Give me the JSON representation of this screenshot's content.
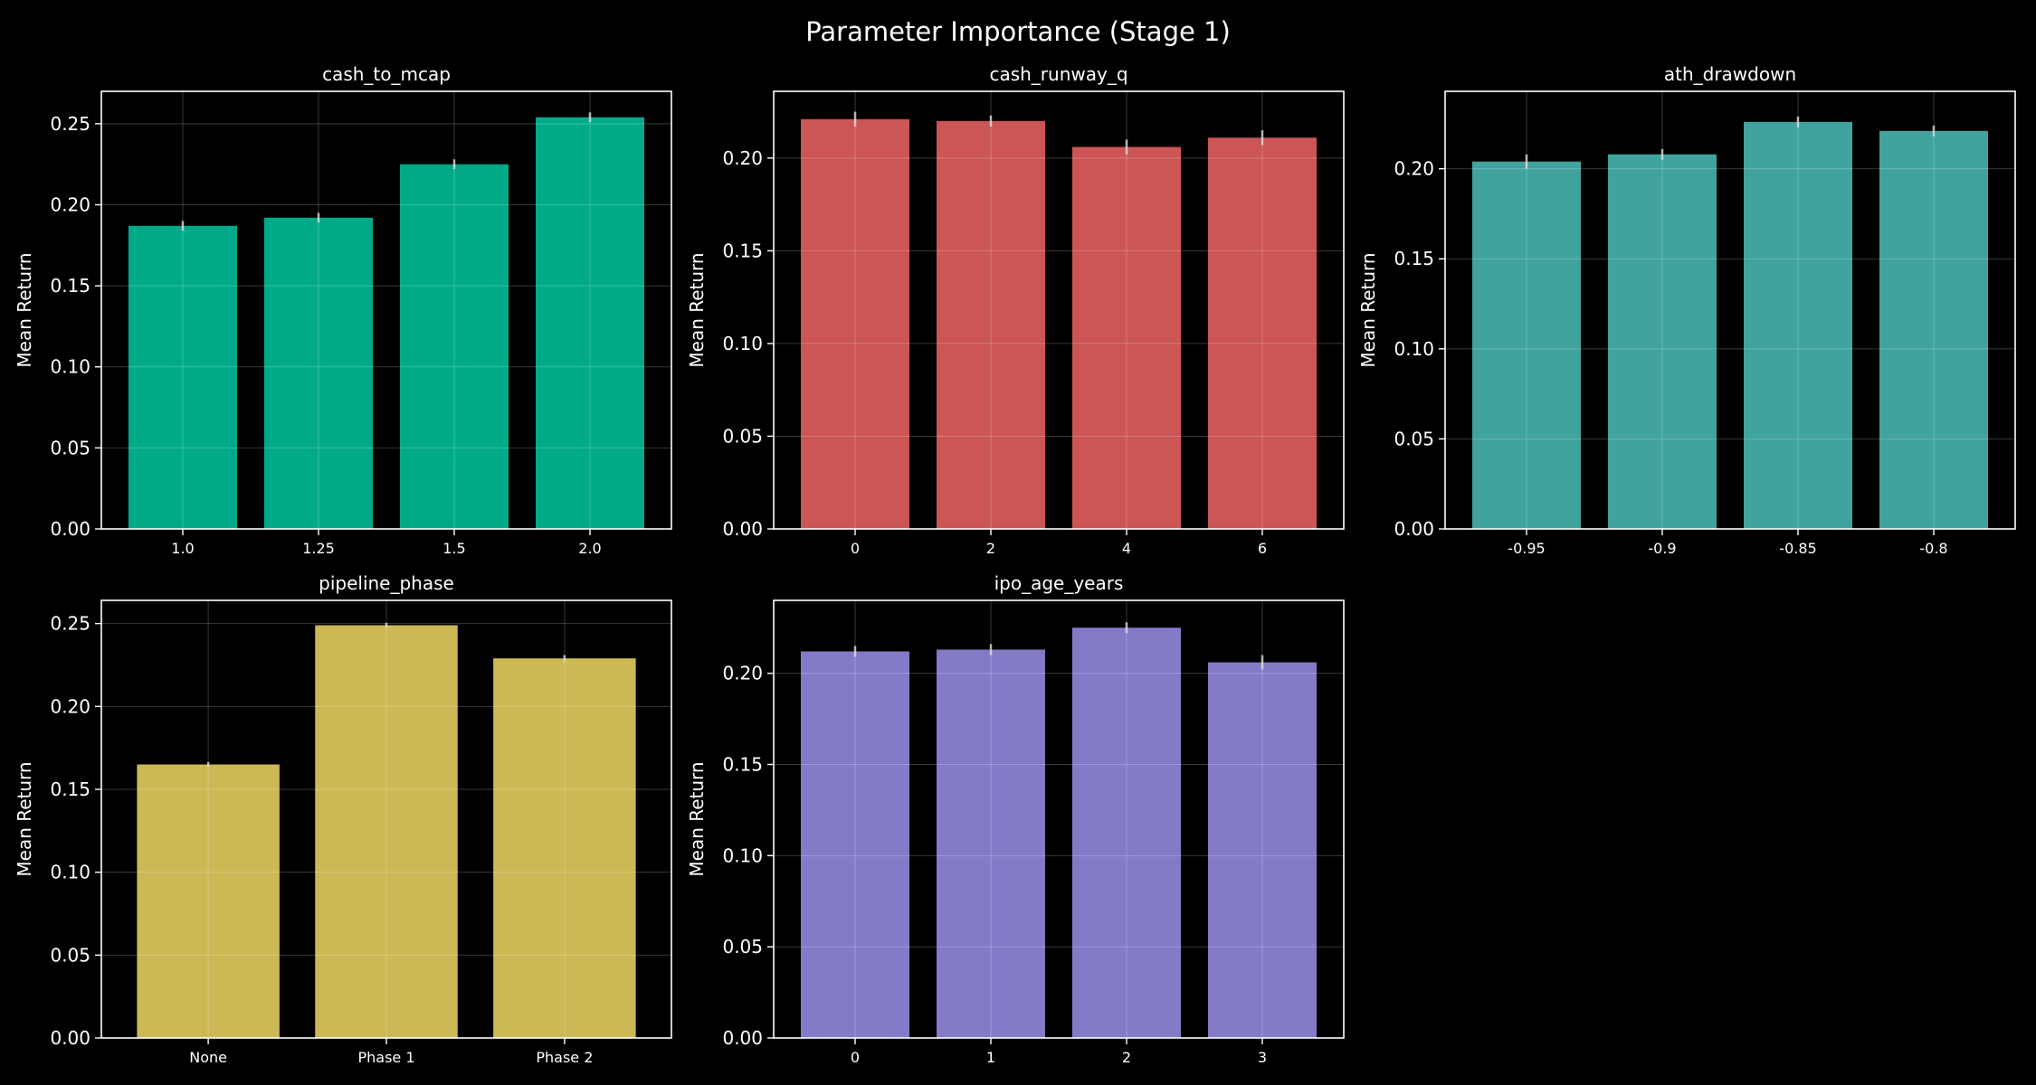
{
  "figure": {
    "title": "Parameter Importance (Stage 1)",
    "background": "#000000",
    "axes_color": "#ffffff",
    "grid_color": "#ffffff"
  },
  "chart_data": [
    {
      "type": "bar",
      "title": "cash_to_mcap",
      "ylabel": "Mean Return",
      "xlabel": "",
      "categories": [
        "1.0",
        "1.25",
        "1.5",
        "2.0"
      ],
      "values": [
        0.187,
        0.192,
        0.225,
        0.254
      ],
      "errors": [
        0.003,
        0.003,
        0.003,
        0.003
      ],
      "ylim": [
        0,
        0.27
      ],
      "yticks": [
        0.0,
        0.05,
        0.1,
        0.15,
        0.2,
        0.25
      ],
      "ytick_labels": [
        "0.00",
        "0.05",
        "0.10",
        "0.15",
        "0.20",
        "0.25"
      ],
      "color": "#00aa88",
      "grid": true
    },
    {
      "type": "bar",
      "title": "cash_runway_q",
      "ylabel": "Mean Return",
      "xlabel": "",
      "categories": [
        "0",
        "2",
        "4",
        "6"
      ],
      "values": [
        0.221,
        0.22,
        0.206,
        0.211
      ],
      "errors": [
        0.004,
        0.003,
        0.004,
        0.004
      ],
      "ylim": [
        0,
        0.236
      ],
      "yticks": [
        0.0,
        0.05,
        0.1,
        0.15,
        0.2
      ],
      "ytick_labels": [
        "0.00",
        "0.05",
        "0.10",
        "0.15",
        "0.20"
      ],
      "color": "#cc5555",
      "grid": true
    },
    {
      "type": "bar",
      "title": "ath_drawdown",
      "ylabel": "Mean Return",
      "xlabel": "",
      "categories": [
        "-0.95",
        "-0.9",
        "-0.85",
        "-0.8"
      ],
      "values": [
        0.204,
        0.208,
        0.226,
        0.221
      ],
      "errors": [
        0.004,
        0.003,
        0.003,
        0.003
      ],
      "ylim": [
        0,
        0.243
      ],
      "yticks": [
        0.0,
        0.05,
        0.1,
        0.15,
        0.2
      ],
      "ytick_labels": [
        "0.00",
        "0.05",
        "0.10",
        "0.15",
        "0.20"
      ],
      "color": "#40a39e",
      "grid": true
    },
    {
      "type": "bar",
      "title": "pipeline_phase",
      "ylabel": "Mean Return",
      "xlabel": "",
      "categories": [
        "None",
        "Phase 1",
        "Phase 2"
      ],
      "values": [
        0.165,
        0.249,
        0.229
      ],
      "errors": [
        0.0015,
        0.0015,
        0.002
      ],
      "ylim": [
        0,
        0.264
      ],
      "yticks": [
        0.0,
        0.05,
        0.1,
        0.15,
        0.2,
        0.25
      ],
      "ytick_labels": [
        "0.00",
        "0.05",
        "0.10",
        "0.15",
        "0.20",
        "0.25"
      ],
      "color": "#ccb855",
      "grid": true
    },
    {
      "type": "bar",
      "title": "ipo_age_years",
      "ylabel": "Mean Return",
      "xlabel": "",
      "categories": [
        "0",
        "1",
        "2",
        "3"
      ],
      "values": [
        0.212,
        0.213,
        0.225,
        0.206
      ],
      "errors": [
        0.003,
        0.003,
        0.003,
        0.004
      ],
      "ylim": [
        0,
        0.24
      ],
      "yticks": [
        0.0,
        0.05,
        0.1,
        0.15,
        0.2
      ],
      "ytick_labels": [
        "0.00",
        "0.05",
        "0.10",
        "0.15",
        "0.20"
      ],
      "color": "#837bc8",
      "grid": true
    }
  ]
}
